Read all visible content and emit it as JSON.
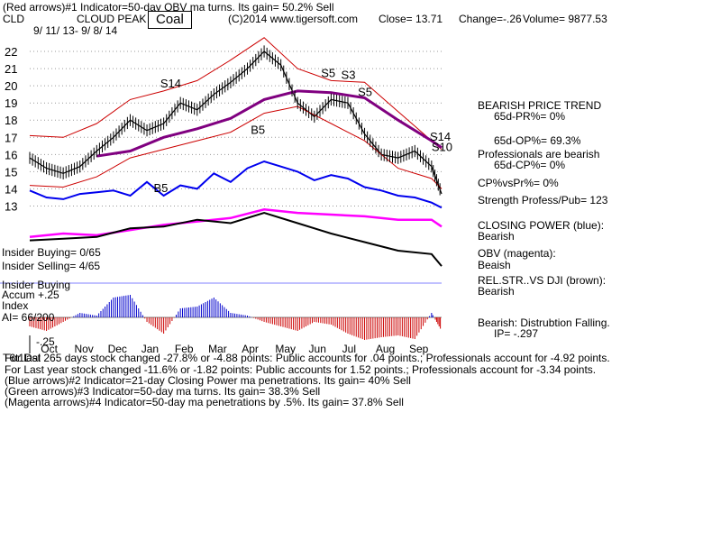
{
  "header": {
    "line1": "(Red arrows)#1 Indicator=50-day OBV ma turns. Its gain= 50.2% Sell",
    "ticker": "CLD",
    "company": "CLOUD PEAK",
    "sector_badge": "Coal",
    "copyright": "(C)2014 www.tigersoft.com",
    "close": "Close=  13.71",
    "change": "Change=-.26",
    "volume": "Volume= 9877.53",
    "date_range": "9/ 11/ 13- 9/ 8/ 14"
  },
  "right_panel": {
    "trend_title": "BEARISH PRICE TREND",
    "pr": "65d-PR%= 0%",
    "op": "65d-OP%= 69.3%",
    "professionals": "Professionals are bearish",
    "cp": "65d-CP%= 0%",
    "cpvspr": "CP%vsPr%=  0%",
    "strength": "Strength Profess/Pub= 123",
    "closing_power_label": "CLOSING POWER (blue):",
    "closing_power_value": "Bearish",
    "obv_label": "OBV (magenta):",
    "obv_value": "Beaish",
    "relstr_label": "REL.STR..VS DJI (brown):",
    "relstr_value": "Bearish",
    "accum_label": "Bearish: Distrubtion Falling.",
    "ip": "IP= -.297"
  },
  "left_panel": {
    "insider_buying_1": "Insider Buying= 0/65",
    "insider_selling": "Insider Selling= 4/65",
    "insider_buying_2": "Insider Buying",
    "accum": "Accum  +.25",
    "index": "Index",
    "ai": "AI= 66/200",
    "minus_25": "-.25"
  },
  "footer": {
    "line1": "For last 265 days stock changed -27.8% or -4.88 points:  Public accounts for  .04 points.;  Professionals account for -4.92 points.",
    "line2": "For Last year stock changed -11.6% or -1.82 points:  Public accounts for  1.52 points.;  Professionals account for -3.34 points.",
    "line3": "(Blue arrows)#2 Indicator=21-day Closing Power ma penetrations. Its gain= 40% Sell",
    "line4": "(Green arrows)#3 Indicator=50-day ma turns. Its gain= 38.3% Sell",
    "line5": "(Magenta arrows)#4 Indicator=50-day ma penetrations by .5%. Its gain= 37.8% Sell",
    "overlap": "T6t1Dal"
  },
  "colors": {
    "price": "#000000",
    "bands": "#cc0000",
    "ma50": "#800080",
    "closing_power": "#0000ee",
    "obv": "#ff00ff",
    "relstr": "#000000",
    "accum_pos": "#0000cc",
    "accum_neg": "#cc0000",
    "signal_red": "#cc0000",
    "signal_blue": "#0000ee",
    "divider": "#8080ff"
  },
  "chart_data": {
    "type": "line",
    "price_axis": {
      "ticks": [
        22,
        21,
        20,
        19,
        18,
        17,
        16,
        15,
        14,
        13
      ],
      "ylim": [
        12.5,
        23
      ]
    },
    "months": [
      "Oct",
      "Nov",
      "Dec",
      "Jan",
      "Feb",
      "Mar",
      "Apr",
      "May",
      "Jun",
      "Jul",
      "Aug",
      "Sep"
    ],
    "signal_labels": [
      {
        "text": "S14",
        "month": 3.9,
        "price": 19.9
      },
      {
        "text": "S5",
        "month": 8.7,
        "price": 20.5
      },
      {
        "text": "S3",
        "month": 9.3,
        "price": 20.4
      },
      {
        "text": "S5",
        "month": 9.8,
        "price": 19.4
      },
      {
        "text": "B5",
        "month": 6.6,
        "price": 17.2
      },
      {
        "text": "B5",
        "month": 3.7,
        "price": 13.8
      },
      {
        "text": "S14",
        "month": 11.95,
        "price": 16.8
      },
      {
        "text": "S10",
        "month": 12.0,
        "price": 16.2
      }
    ],
    "series": [
      {
        "name": "Price",
        "x": [
          0,
          0.5,
          1,
          1.5,
          2,
          2.5,
          3,
          3.5,
          4,
          4.5,
          5,
          5.5,
          6,
          6.5,
          7,
          7.5,
          8,
          8.5,
          9,
          9.5,
          10,
          10.5,
          11,
          11.5,
          12,
          12.3
        ],
        "y": [
          15.8,
          15.2,
          14.9,
          15.3,
          16.2,
          17.0,
          18.0,
          17.4,
          17.8,
          19.0,
          18.6,
          19.5,
          20.2,
          21.0,
          22.0,
          21.2,
          19.0,
          18.2,
          19.2,
          19.0,
          17.2,
          16.0,
          15.8,
          16.2,
          15.3,
          13.71
        ]
      },
      {
        "name": "Upper band",
        "x": [
          0,
          1,
          2,
          3,
          4,
          5,
          6,
          7,
          8,
          9,
          10,
          11,
          12,
          12.3
        ],
        "y": [
          17.1,
          17.0,
          17.8,
          19.2,
          19.7,
          20.3,
          21.5,
          22.8,
          21.0,
          20.3,
          20.2,
          18.5,
          16.8,
          16.3
        ]
      },
      {
        "name": "Lower band",
        "x": [
          0,
          1,
          2,
          3,
          4,
          5,
          6,
          7,
          8,
          9,
          10,
          11,
          12,
          12.3
        ],
        "y": [
          14.2,
          14.1,
          14.7,
          15.8,
          16.3,
          16.8,
          17.3,
          18.4,
          18.8,
          17.8,
          16.8,
          15.2,
          14.6,
          14.0
        ]
      },
      {
        "name": "50-day MA",
        "x": [
          2,
          3,
          4,
          5,
          6,
          7,
          8,
          9,
          10,
          11,
          12,
          12.3
        ],
        "y": [
          15.9,
          16.2,
          17.0,
          17.5,
          18.1,
          19.2,
          19.7,
          19.6,
          19.3,
          18.0,
          16.8,
          16.4
        ]
      },
      {
        "name": "Closing Power",
        "x": [
          0,
          0.5,
          1,
          1.5,
          2,
          2.5,
          3,
          3.5,
          4,
          4.5,
          5,
          5.5,
          6,
          6.5,
          7,
          7.5,
          8,
          8.5,
          9,
          9.5,
          10,
          10.5,
          11,
          11.5,
          12,
          12.3
        ],
        "y": [
          13.9,
          13.5,
          13.4,
          13.7,
          13.8,
          13.9,
          13.6,
          14.4,
          13.6,
          14.2,
          14.0,
          14.9,
          14.4,
          15.2,
          15.6,
          15.3,
          15.0,
          14.5,
          14.8,
          14.6,
          14.1,
          13.9,
          13.6,
          13.5,
          13.2,
          12.9
        ]
      },
      {
        "name": "OBV",
        "x": [
          0,
          1,
          2,
          3,
          4,
          5,
          6,
          7,
          8,
          9,
          10,
          11,
          12,
          12.3
        ],
        "y": [
          11.2,
          11.4,
          11.3,
          11.6,
          11.9,
          12.1,
          12.3,
          12.8,
          12.6,
          12.5,
          12.4,
          12.2,
          12.2,
          11.8
        ]
      },
      {
        "name": "RelStr vs DJI",
        "x": [
          0,
          1,
          2,
          3,
          4,
          5,
          6,
          7,
          8,
          9,
          10,
          11,
          12,
          12.3
        ],
        "y": [
          11.0,
          11.1,
          11.2,
          11.7,
          11.8,
          12.2,
          12.0,
          12.6,
          12.0,
          11.4,
          10.9,
          10.4,
          10.2,
          9.5
        ]
      }
    ],
    "accum_index": {
      "x": [
        0,
        0.5,
        1,
        1.5,
        2,
        2.5,
        3,
        3.5,
        4,
        4.5,
        5,
        5.5,
        6,
        6.5,
        7,
        7.5,
        8,
        8.5,
        9,
        9.5,
        10,
        10.5,
        11,
        11.5,
        12,
        12.3
      ],
      "values": [
        -0.1,
        -0.15,
        -0.05,
        0.05,
        0.02,
        0.22,
        0.25,
        -0.05,
        -0.18,
        0.1,
        0.12,
        0.22,
        0.05,
        0.02,
        -0.05,
        -0.1,
        -0.15,
        -0.05,
        -0.08,
        -0.18,
        -0.25,
        -0.22,
        -0.2,
        -0.24,
        0.05,
        -0.15
      ],
      "ylim": [
        -0.3,
        0.3
      ]
    }
  }
}
